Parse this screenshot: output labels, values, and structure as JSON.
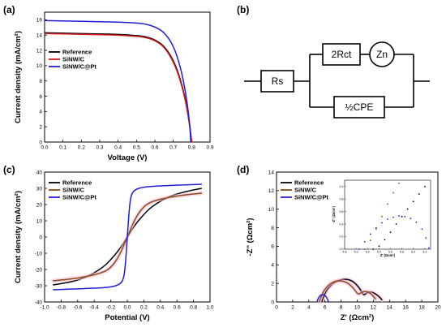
{
  "panels": {
    "a": "(a)",
    "b": "(b)",
    "c": "(c)",
    "d": "(d)"
  },
  "colors": {
    "reference": "#000000",
    "sinw_c_a": "#d81b1b",
    "sinw_c": "#8b4a14",
    "sinw_c_pt": "#1f1fd8",
    "highlight": "#f4b8d8"
  },
  "circuit": {
    "rs": "Rs",
    "rct": "2Rct",
    "zn": "Zn",
    "cpe": "½CPE"
  },
  "chart_data": [
    {
      "id": "a",
      "type": "line",
      "xlabel": "Voltage (V)",
      "ylabel": "Current density (mA/cm²)",
      "xlim": [
        0.0,
        0.9
      ],
      "ylim": [
        0,
        17
      ],
      "xticks": [
        "0.0",
        "0.1",
        "0.2",
        "0.3",
        "0.4",
        "0.5",
        "0.6",
        "0.7",
        "0.8",
        "0.9"
      ],
      "yticks": [
        "0",
        "2",
        "4",
        "6",
        "8",
        "10",
        "12",
        "14",
        "16"
      ],
      "legend": "top-left",
      "series": [
        {
          "name": "Reference",
          "color": "#000000",
          "x": [
            0,
            0.1,
            0.2,
            0.3,
            0.4,
            0.5,
            0.55,
            0.6,
            0.65,
            0.7,
            0.74,
            0.77,
            0.79,
            0.8
          ],
          "y": [
            14.3,
            14.25,
            14.2,
            14.15,
            14.1,
            13.95,
            13.8,
            13.4,
            12.6,
            10.8,
            8.2,
            5.2,
            2.2,
            0
          ]
        },
        {
          "name": "SiNW/C",
          "color": "#d81b1b",
          "x": [
            0,
            0.1,
            0.2,
            0.3,
            0.4,
            0.5,
            0.55,
            0.6,
            0.65,
            0.7,
            0.74,
            0.77,
            0.79,
            0.8
          ],
          "y": [
            14.2,
            14.15,
            14.1,
            14.05,
            14.0,
            13.85,
            13.7,
            13.3,
            12.5,
            10.6,
            8.0,
            5.0,
            2.0,
            0
          ]
        },
        {
          "name": "SiNW/C@Pt",
          "color": "#1f1fd8",
          "x": [
            0,
            0.1,
            0.2,
            0.3,
            0.4,
            0.5,
            0.55,
            0.6,
            0.65,
            0.7,
            0.74,
            0.77,
            0.79,
            0.795
          ],
          "y": [
            15.9,
            15.85,
            15.8,
            15.75,
            15.7,
            15.6,
            15.45,
            15.1,
            14.4,
            12.7,
            9.8,
            6.2,
            2.3,
            0
          ]
        }
      ]
    },
    {
      "id": "c",
      "type": "line",
      "xlabel": "Potential (V)",
      "ylabel": "Current density (mA/cm²)",
      "xlim": [
        -1.0,
        1.0
      ],
      "ylim": [
        -40,
        40
      ],
      "xticks": [
        "-1.0",
        "-0.8",
        "-0.6",
        "-0.4",
        "-0.2",
        "0.0",
        "0.2",
        "0.4",
        "0.6",
        "0.8",
        "1.0"
      ],
      "yticks": [
        "-40",
        "-30",
        "-20",
        "-10",
        "0",
        "10",
        "20",
        "30",
        "40"
      ],
      "legend": "top-left",
      "series": [
        {
          "name": "Reference",
          "color": "#000000",
          "x": [
            -0.9,
            -0.7,
            -0.5,
            -0.3,
            -0.2,
            -0.1,
            0,
            0.1,
            0.2,
            0.3,
            0.5,
            0.7,
            0.9
          ],
          "y": [
            -29.5,
            -28,
            -25,
            -19,
            -14,
            -8,
            0,
            8,
            14,
            19,
            25,
            28,
            30
          ]
        },
        {
          "name": "SiNW/C",
          "color": "#8b4a14",
          "x": [
            -0.9,
            -0.7,
            -0.5,
            -0.3,
            -0.2,
            -0.1,
            0,
            0.1,
            0.2,
            0.3,
            0.5,
            0.7,
            0.9
          ],
          "y": [
            -27,
            -26,
            -24.5,
            -22,
            -19,
            -12,
            0,
            12,
            19,
            22,
            24.5,
            26,
            27
          ]
        },
        {
          "name": "SiNW/C@Pt",
          "color": "#1f1fd8",
          "x": [
            -0.9,
            -0.5,
            -0.2,
            -0.08,
            -0.04,
            -0.02,
            0,
            0.02,
            0.04,
            0.08,
            0.2,
            0.5,
            0.9
          ],
          "y": [
            -32.5,
            -31.8,
            -31,
            -29,
            -25,
            -15,
            0,
            15,
            25,
            29,
            31,
            31.8,
            32.5
          ]
        }
      ]
    },
    {
      "id": "d",
      "type": "line",
      "xlabel": "Z' (Ωcm²)",
      "ylabel": "-Z'' (Ωcm²)",
      "xlim": [
        0,
        20
      ],
      "ylim": [
        0,
        14
      ],
      "xticks": [
        "0",
        "2",
        "4",
        "6",
        "8",
        "10",
        "12",
        "14",
        "16",
        "18",
        "20"
      ],
      "yticks": [
        "0",
        "2",
        "4",
        "6",
        "8",
        "10",
        "12",
        "14"
      ],
      "legend": "top-left",
      "series": [
        {
          "name": "Reference",
          "color": "#000000",
          "x": [
            5.6,
            6,
            6.5,
            7,
            7.5,
            8,
            8.5,
            9,
            9.5,
            10,
            10.5,
            10.8,
            11.2,
            11.6,
            12,
            12.4,
            12.8,
            13.1
          ],
          "y": [
            0,
            1.0,
            1.6,
            2.0,
            2.25,
            2.4,
            2.45,
            2.4,
            2.2,
            1.8,
            1.2,
            0.7,
            1.0,
            1.1,
            1.0,
            0.8,
            0.5,
            0.2
          ]
        },
        {
          "name": "SiNW/C",
          "color": "#8b4a14",
          "x": [
            5.3,
            5.7,
            6.2,
            6.7,
            7.2,
            7.7,
            8.2,
            8.7,
            9.2,
            9.7,
            10.1,
            10.5,
            10.9,
            11.3,
            11.7,
            12.0,
            12.3
          ],
          "y": [
            0,
            1.0,
            1.6,
            2.0,
            2.2,
            2.3,
            2.25,
            2.1,
            1.8,
            1.3,
            0.8,
            1.0,
            1.15,
            1.1,
            0.9,
            0.6,
            0.3
          ]
        },
        {
          "name": "SiNW/C@Pt",
          "color": "#1f1fd8",
          "x": [
            5.0,
            5.15,
            5.3,
            5.5,
            5.75,
            6.0,
            6.2,
            6.35,
            6.45
          ],
          "y": [
            0,
            0.35,
            0.6,
            0.75,
            0.8,
            0.7,
            0.5,
            0.25,
            0
          ]
        }
      ],
      "inset": {
        "xlabel": "Z' (Ωcm²)",
        "ylabel": "-Z'' (Ωcm²)",
        "xlim": [
          4.8,
          6.3
        ],
        "ylim": [
          0,
          1.1
        ],
        "xticks": [
          "4.8",
          "5.0",
          "5.2",
          "5.4",
          "5.6",
          "5.8",
          "6.0",
          "6.2"
        ],
        "yticks": [
          "0.0",
          "0.2",
          "0.4",
          "0.6",
          "0.8",
          "1.0"
        ],
        "series": [
          {
            "name": "Reference",
            "color": "#000000",
            "x": [
              5.3,
              5.4,
              5.5,
              5.6,
              5.7,
              5.8,
              5.9,
              6.0,
              6.1,
              6.2
            ],
            "y": [
              0.0,
              0.05,
              0.15,
              0.27,
              0.4,
              0.52,
              0.64,
              0.76,
              0.88,
              1.0
            ]
          },
          {
            "name": "SiNW/C",
            "color": "#8b4a14",
            "x": [
              5.15,
              5.25,
              5.35,
              5.45,
              5.55,
              5.65,
              5.75
            ],
            "y": [
              0.0,
              0.14,
              0.32,
              0.52,
              0.72,
              0.9,
              1.05
            ]
          },
          {
            "name": "SiNW/C@Pt",
            "color": "#1f1fd8",
            "x": [
              5.05,
              5.15,
              5.25,
              5.35,
              5.45,
              5.55,
              5.65,
              5.75,
              5.85,
              5.95,
              6.05,
              6.15,
              6.22,
              6.27
            ],
            "y": [
              0.0,
              0.12,
              0.24,
              0.34,
              0.42,
              0.48,
              0.51,
              0.53,
              0.52,
              0.49,
              0.43,
              0.32,
              0.18,
              0.02
            ]
          }
        ]
      }
    }
  ]
}
